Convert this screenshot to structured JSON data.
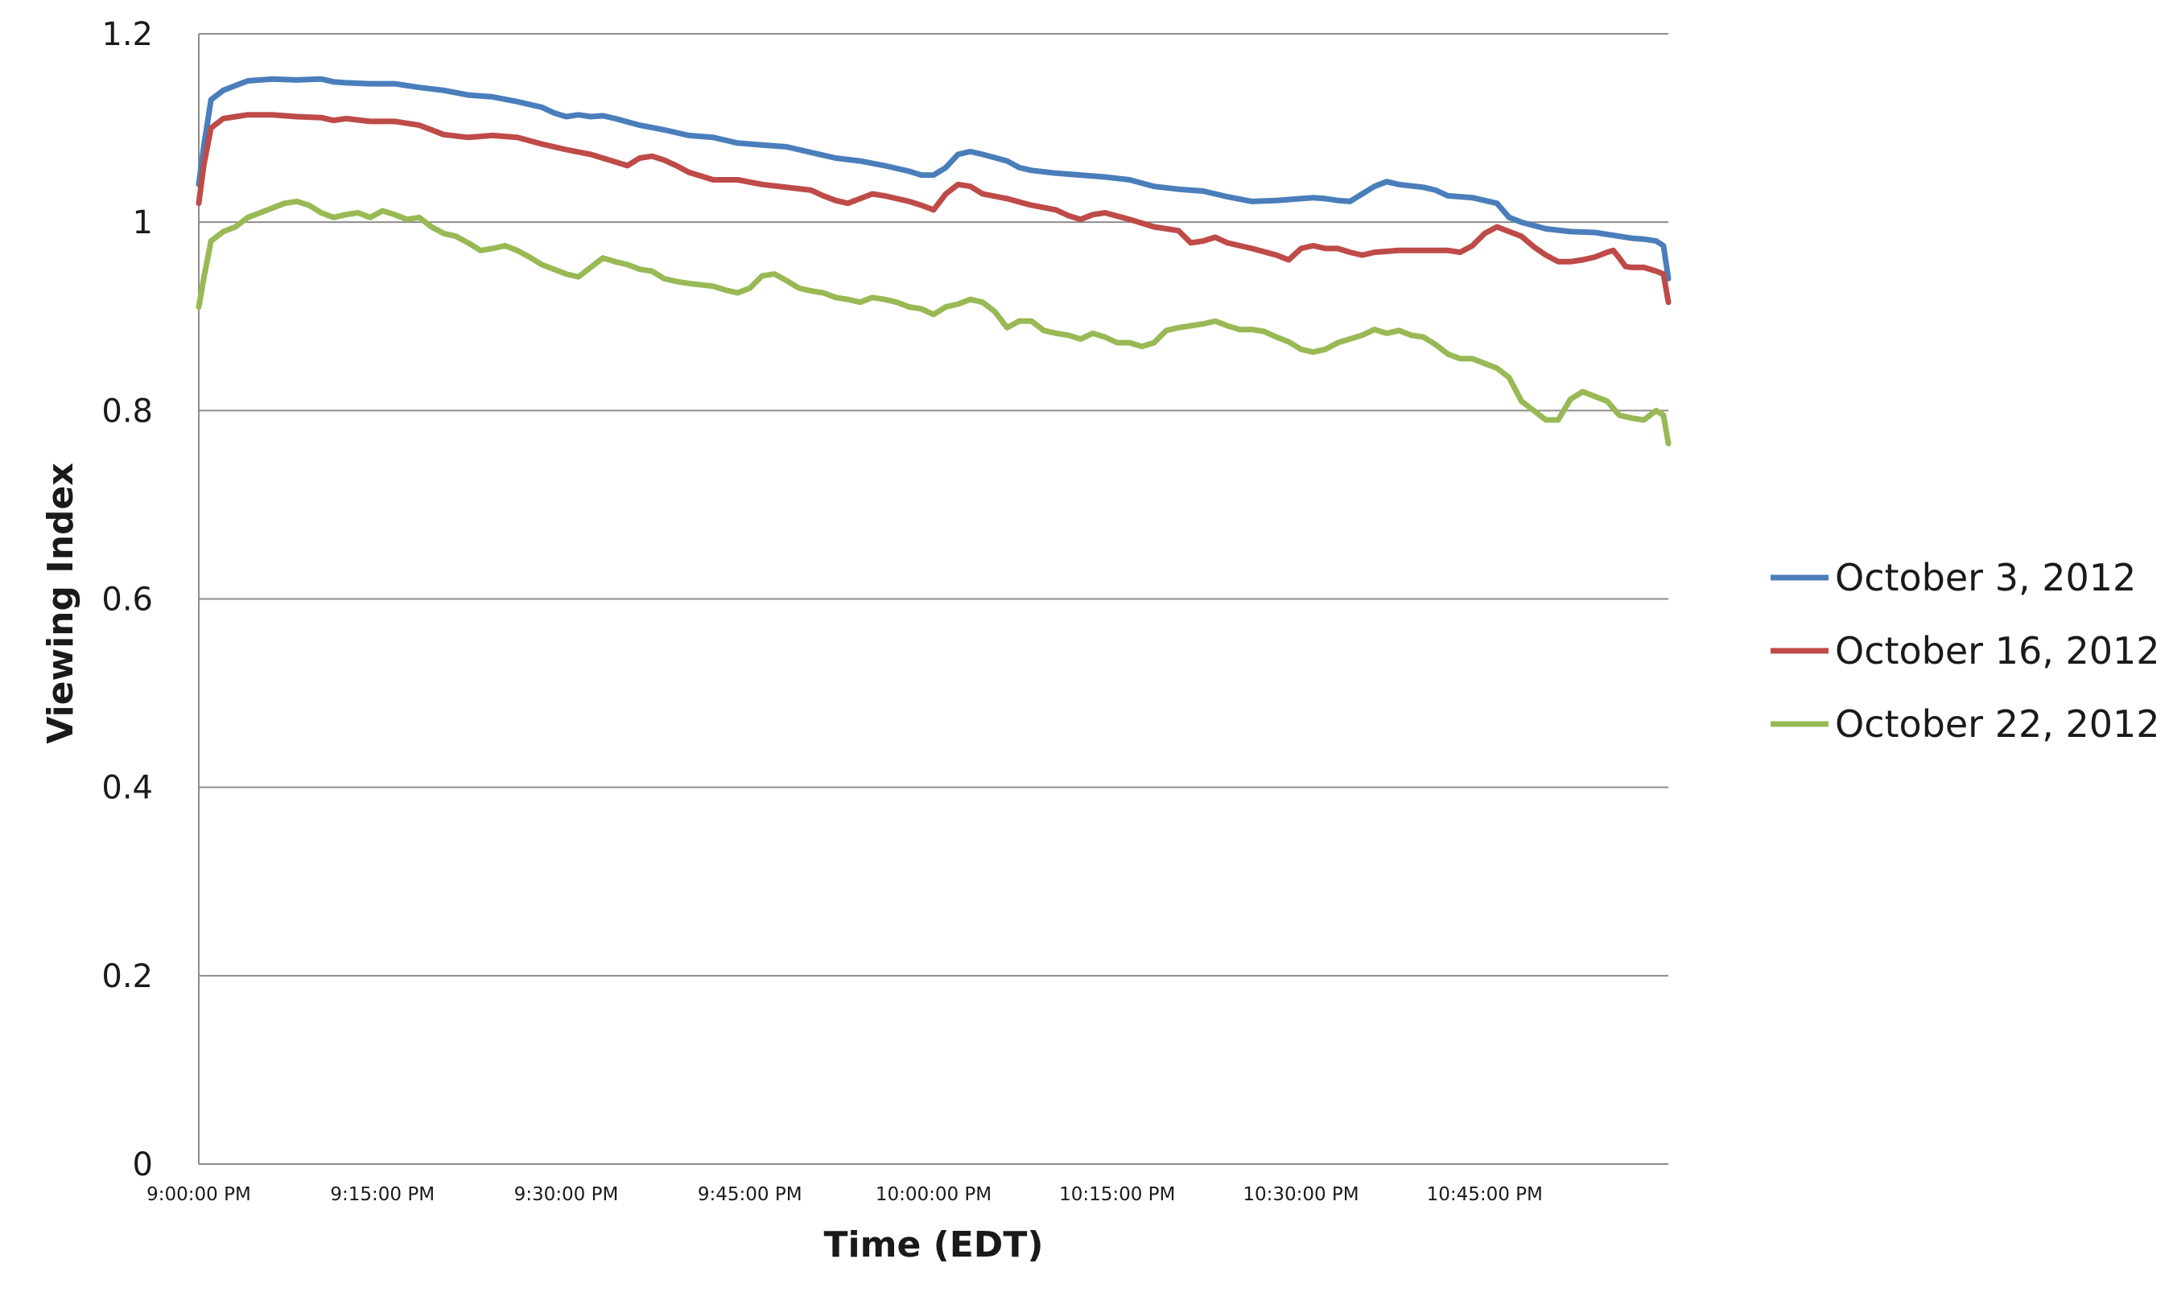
{
  "chart_data": {
    "type": "line",
    "title": "",
    "xlabel": "Time (EDT)",
    "ylabel": "Viewing Index",
    "x_unit": "minutes",
    "xlim": [
      0,
      120
    ],
    "ylim": [
      0,
      1.2
    ],
    "yticks": [
      0,
      0.2,
      0.4,
      0.6,
      0.8,
      1,
      1.2
    ],
    "ytick_labels": [
      "0",
      "0.2",
      "0.4",
      "0.6",
      "0.8",
      "1",
      "1.2"
    ],
    "xticks": [
      0,
      15,
      30,
      45,
      60,
      75,
      90,
      105
    ],
    "xtick_labels": [
      "9:00:00 PM",
      "9:15:00 PM",
      "9:30:00 PM",
      "9:45:00 PM",
      "10:00:00 PM",
      "10:15:00 PM",
      "10:30:00 PM",
      "10:45:00 PM"
    ],
    "grid": "horizontal",
    "legend_position": "right",
    "series": [
      {
        "name": "October 3, 2012",
        "color": "#4a7ebb",
        "points": [
          [
            0,
            1.04
          ],
          [
            0.4,
            1.08
          ],
          [
            1,
            1.13
          ],
          [
            2,
            1.14
          ],
          [
            3,
            1.145
          ],
          [
            4,
            1.15
          ],
          [
            6,
            1.152
          ],
          [
            8,
            1.151
          ],
          [
            10,
            1.152
          ],
          [
            11,
            1.149
          ],
          [
            12,
            1.148
          ],
          [
            14,
            1.147
          ],
          [
            16,
            1.147
          ],
          [
            18,
            1.143
          ],
          [
            20,
            1.14
          ],
          [
            22,
            1.135
          ],
          [
            24,
            1.133
          ],
          [
            26,
            1.128
          ],
          [
            28,
            1.122
          ],
          [
            29,
            1.116
          ],
          [
            30,
            1.112
          ],
          [
            31,
            1.114
          ],
          [
            32,
            1.112
          ],
          [
            33,
            1.113
          ],
          [
            34,
            1.11
          ],
          [
            36,
            1.103
          ],
          [
            38,
            1.098
          ],
          [
            40,
            1.092
          ],
          [
            42,
            1.09
          ],
          [
            44,
            1.084
          ],
          [
            46,
            1.082
          ],
          [
            48,
            1.08
          ],
          [
            50,
            1.074
          ],
          [
            52,
            1.068
          ],
          [
            54,
            1.065
          ],
          [
            56,
            1.06
          ],
          [
            58,
            1.054
          ],
          [
            59,
            1.05
          ],
          [
            60,
            1.05
          ],
          [
            61,
            1.058
          ],
          [
            62,
            1.072
          ],
          [
            63,
            1.075
          ],
          [
            64,
            1.072
          ],
          [
            66,
            1.065
          ],
          [
            67,
            1.058
          ],
          [
            68,
            1.055
          ],
          [
            70,
            1.052
          ],
          [
            72,
            1.05
          ],
          [
            74,
            1.048
          ],
          [
            76,
            1.045
          ],
          [
            78,
            1.038
          ],
          [
            80,
            1.035
          ],
          [
            82,
            1.033
          ],
          [
            84,
            1.027
          ],
          [
            86,
            1.022
          ],
          [
            88,
            1.023
          ],
          [
            90,
            1.025
          ],
          [
            91,
            1.026
          ],
          [
            92,
            1.025
          ],
          [
            93,
            1.023
          ],
          [
            94,
            1.022
          ],
          [
            95,
            1.03
          ],
          [
            96,
            1.038
          ],
          [
            97,
            1.043
          ],
          [
            98,
            1.04
          ],
          [
            100,
            1.037
          ],
          [
            101,
            1.034
          ],
          [
            102,
            1.028
          ],
          [
            104,
            1.026
          ],
          [
            106,
            1.02
          ],
          [
            107,
            1.005
          ],
          [
            108,
            1.0
          ],
          [
            110,
            0.993
          ],
          [
            112,
            0.99
          ],
          [
            114,
            0.989
          ],
          [
            116,
            0.985
          ],
          [
            117,
            0.983
          ],
          [
            118,
            0.982
          ],
          [
            119,
            0.98
          ],
          [
            119.6,
            0.975
          ],
          [
            120,
            0.94
          ]
        ]
      },
      {
        "name": "October 16, 2012",
        "color": "#be4b48",
        "points": [
          [
            0,
            1.02
          ],
          [
            0.4,
            1.06
          ],
          [
            1,
            1.1
          ],
          [
            2,
            1.11
          ],
          [
            3,
            1.112
          ],
          [
            4,
            1.114
          ],
          [
            6,
            1.114
          ],
          [
            8,
            1.112
          ],
          [
            10,
            1.111
          ],
          [
            11,
            1.108
          ],
          [
            12,
            1.11
          ],
          [
            14,
            1.107
          ],
          [
            16,
            1.107
          ],
          [
            18,
            1.103
          ],
          [
            19,
            1.098
          ],
          [
            20,
            1.093
          ],
          [
            22,
            1.09
          ],
          [
            24,
            1.092
          ],
          [
            26,
            1.09
          ],
          [
            28,
            1.083
          ],
          [
            30,
            1.077
          ],
          [
            32,
            1.072
          ],
          [
            34,
            1.064
          ],
          [
            35,
            1.06
          ],
          [
            36,
            1.068
          ],
          [
            37,
            1.07
          ],
          [
            38,
            1.066
          ],
          [
            39,
            1.06
          ],
          [
            40,
            1.053
          ],
          [
            42,
            1.045
          ],
          [
            44,
            1.045
          ],
          [
            46,
            1.04
          ],
          [
            48,
            1.037
          ],
          [
            50,
            1.034
          ],
          [
            51,
            1.028
          ],
          [
            52,
            1.023
          ],
          [
            53,
            1.02
          ],
          [
            54,
            1.025
          ],
          [
            55,
            1.03
          ],
          [
            56,
            1.028
          ],
          [
            58,
            1.022
          ],
          [
            59,
            1.018
          ],
          [
            60,
            1.013
          ],
          [
            61,
            1.03
          ],
          [
            62,
            1.04
          ],
          [
            63,
            1.038
          ],
          [
            64,
            1.03
          ],
          [
            66,
            1.025
          ],
          [
            68,
            1.018
          ],
          [
            70,
            1.013
          ],
          [
            71,
            1.007
          ],
          [
            72,
            1.003
          ],
          [
            73,
            1.008
          ],
          [
            74,
            1.01
          ],
          [
            76,
            1.003
          ],
          [
            78,
            0.995
          ],
          [
            80,
            0.991
          ],
          [
            81,
            0.978
          ],
          [
            82,
            0.98
          ],
          [
            83,
            0.984
          ],
          [
            84,
            0.978
          ],
          [
            86,
            0.972
          ],
          [
            88,
            0.965
          ],
          [
            89,
            0.96
          ],
          [
            90,
            0.972
          ],
          [
            91,
            0.975
          ],
          [
            92,
            0.972
          ],
          [
            93,
            0.972
          ],
          [
            94,
            0.968
          ],
          [
            95,
            0.965
          ],
          [
            96,
            0.968
          ],
          [
            98,
            0.97
          ],
          [
            100,
            0.97
          ],
          [
            102,
            0.97
          ],
          [
            103,
            0.968
          ],
          [
            104,
            0.975
          ],
          [
            105,
            0.988
          ],
          [
            106,
            0.995
          ],
          [
            107,
            0.99
          ],
          [
            108,
            0.985
          ],
          [
            109,
            0.974
          ],
          [
            110,
            0.965
          ],
          [
            111,
            0.958
          ],
          [
            112,
            0.958
          ],
          [
            113,
            0.96
          ],
          [
            114,
            0.963
          ],
          [
            115,
            0.968
          ],
          [
            115.5,
            0.97
          ],
          [
            116,
            0.962
          ],
          [
            116.5,
            0.953
          ],
          [
            117,
            0.952
          ],
          [
            118,
            0.952
          ],
          [
            119,
            0.948
          ],
          [
            119.6,
            0.945
          ],
          [
            120,
            0.915
          ]
        ]
      },
      {
        "name": "October 22, 2012",
        "color": "#98b954",
        "points": [
          [
            0,
            0.91
          ],
          [
            0.4,
            0.94
          ],
          [
            1,
            0.98
          ],
          [
            2,
            0.99
          ],
          [
            3,
            0.995
          ],
          [
            4,
            1.005
          ],
          [
            5,
            1.01
          ],
          [
            6,
            1.015
          ],
          [
            7,
            1.02
          ],
          [
            8,
            1.022
          ],
          [
            9,
            1.018
          ],
          [
            10,
            1.01
          ],
          [
            11,
            1.005
          ],
          [
            12,
            1.008
          ],
          [
            13,
            1.01
          ],
          [
            14,
            1.005
          ],
          [
            15,
            1.012
          ],
          [
            16,
            1.008
          ],
          [
            17,
            1.003
          ],
          [
            18,
            1.005
          ],
          [
            19,
            0.995
          ],
          [
            20,
            0.988
          ],
          [
            21,
            0.985
          ],
          [
            22,
            0.978
          ],
          [
            23,
            0.97
          ],
          [
            24,
            0.972
          ],
          [
            25,
            0.975
          ],
          [
            26,
            0.97
          ],
          [
            27,
            0.963
          ],
          [
            28,
            0.955
          ],
          [
            29,
            0.95
          ],
          [
            30,
            0.945
          ],
          [
            31,
            0.942
          ],
          [
            32,
            0.952
          ],
          [
            33,
            0.962
          ],
          [
            34,
            0.958
          ],
          [
            35,
            0.955
          ],
          [
            36,
            0.95
          ],
          [
            37,
            0.948
          ],
          [
            38,
            0.94
          ],
          [
            39,
            0.937
          ],
          [
            40,
            0.935
          ],
          [
            42,
            0.932
          ],
          [
            43,
            0.928
          ],
          [
            44,
            0.925
          ],
          [
            45,
            0.93
          ],
          [
            46,
            0.943
          ],
          [
            47,
            0.945
          ],
          [
            48,
            0.938
          ],
          [
            49,
            0.93
          ],
          [
            50,
            0.927
          ],
          [
            51,
            0.925
          ],
          [
            52,
            0.92
          ],
          [
            53,
            0.918
          ],
          [
            54,
            0.915
          ],
          [
            55,
            0.92
          ],
          [
            56,
            0.918
          ],
          [
            57,
            0.915
          ],
          [
            58,
            0.91
          ],
          [
            59,
            0.908
          ],
          [
            60,
            0.902
          ],
          [
            61,
            0.91
          ],
          [
            62,
            0.913
          ],
          [
            63,
            0.918
          ],
          [
            64,
            0.915
          ],
          [
            65,
            0.905
          ],
          [
            66,
            0.888
          ],
          [
            67,
            0.895
          ],
          [
            68,
            0.895
          ],
          [
            69,
            0.885
          ],
          [
            70,
            0.882
          ],
          [
            71,
            0.88
          ],
          [
            72,
            0.876
          ],
          [
            73,
            0.882
          ],
          [
            74,
            0.878
          ],
          [
            75,
            0.872
          ],
          [
            76,
            0.872
          ],
          [
            77,
            0.868
          ],
          [
            78,
            0.872
          ],
          [
            79,
            0.885
          ],
          [
            80,
            0.888
          ],
          [
            81,
            0.89
          ],
          [
            82,
            0.892
          ],
          [
            83,
            0.895
          ],
          [
            84,
            0.89
          ],
          [
            85,
            0.886
          ],
          [
            86,
            0.886
          ],
          [
            87,
            0.884
          ],
          [
            88,
            0.878
          ],
          [
            89,
            0.873
          ],
          [
            90,
            0.865
          ],
          [
            91,
            0.862
          ],
          [
            92,
            0.865
          ],
          [
            93,
            0.872
          ],
          [
            94,
            0.876
          ],
          [
            95,
            0.88
          ],
          [
            96,
            0.886
          ],
          [
            97,
            0.882
          ],
          [
            98,
            0.885
          ],
          [
            99,
            0.88
          ],
          [
            100,
            0.878
          ],
          [
            101,
            0.87
          ],
          [
            102,
            0.86
          ],
          [
            103,
            0.855
          ],
          [
            104,
            0.855
          ],
          [
            105,
            0.85
          ],
          [
            106,
            0.845
          ],
          [
            107,
            0.835
          ],
          [
            108,
            0.81
          ],
          [
            109,
            0.8
          ],
          [
            110,
            0.79
          ],
          [
            111,
            0.79
          ],
          [
            112,
            0.812
          ],
          [
            113,
            0.82
          ],
          [
            114,
            0.815
          ],
          [
            115,
            0.81
          ],
          [
            116,
            0.795
          ],
          [
            117,
            0.792
          ],
          [
            118,
            0.79
          ],
          [
            119,
            0.8
          ],
          [
            119.6,
            0.795
          ],
          [
            120,
            0.765
          ]
        ]
      }
    ]
  }
}
